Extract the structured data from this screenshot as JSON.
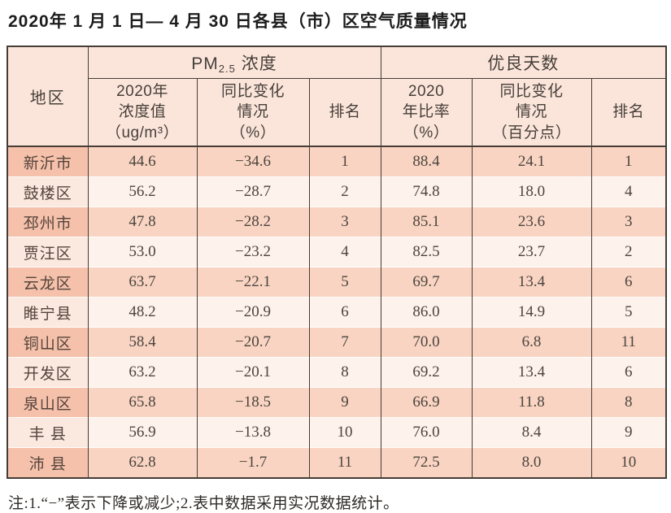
{
  "title": "2020年 1 月 1 日— 4 月 30 日各县（市）区空气质量情况",
  "table": {
    "group_region_label": "地区",
    "group_pm_prefix": "PM",
    "group_pm_sub": "2.5",
    "group_pm_suffix": " 浓度",
    "group_good_days_label": "优良天数",
    "sub_headers": {
      "pm_value": "2020年\n浓度值\n（ug/m³）",
      "pm_change": "同比变化\n情况\n（%）",
      "pm_rank": "排名",
      "ratio": "2020\n年比率\n（%）",
      "ratio_change": "同比变化\n情况\n（百分点）",
      "ratio_rank": "排名"
    },
    "rows": [
      {
        "region": "新沂市",
        "pm_value": "44.6",
        "pm_change": "−34.6",
        "pm_rank": "1",
        "ratio": "88.4",
        "ratio_change": "24.1",
        "ratio_rank": "1"
      },
      {
        "region": "鼓楼区",
        "pm_value": "56.2",
        "pm_change": "−28.7",
        "pm_rank": "2",
        "ratio": "74.8",
        "ratio_change": "18.0",
        "ratio_rank": "4"
      },
      {
        "region": "邳州市",
        "pm_value": "47.8",
        "pm_change": "−28.2",
        "pm_rank": "3",
        "ratio": "85.1",
        "ratio_change": "23.6",
        "ratio_rank": "3"
      },
      {
        "region": "贾汪区",
        "pm_value": "53.0",
        "pm_change": "−23.2",
        "pm_rank": "4",
        "ratio": "82.5",
        "ratio_change": "23.7",
        "ratio_rank": "2"
      },
      {
        "region": "云龙区",
        "pm_value": "63.7",
        "pm_change": "−22.1",
        "pm_rank": "5",
        "ratio": "69.7",
        "ratio_change": "13.4",
        "ratio_rank": "6"
      },
      {
        "region": "睢宁县",
        "pm_value": "48.2",
        "pm_change": "−20.9",
        "pm_rank": "6",
        "ratio": "86.0",
        "ratio_change": "14.9",
        "ratio_rank": "5"
      },
      {
        "region": "铜山区",
        "pm_value": "58.4",
        "pm_change": "−20.7",
        "pm_rank": "7",
        "ratio": "70.0",
        "ratio_change": "6.8",
        "ratio_rank": "11"
      },
      {
        "region": "开发区",
        "pm_value": "63.2",
        "pm_change": "−20.1",
        "pm_rank": "8",
        "ratio": "69.2",
        "ratio_change": "13.4",
        "ratio_rank": "6"
      },
      {
        "region": "泉山区",
        "pm_value": "65.8",
        "pm_change": "−18.5",
        "pm_rank": "9",
        "ratio": "66.9",
        "ratio_change": "11.8",
        "ratio_rank": "8"
      },
      {
        "region": "丰 县",
        "pm_value": "56.9",
        "pm_change": "−13.8",
        "pm_rank": "10",
        "ratio": "76.0",
        "ratio_change": "8.4",
        "ratio_rank": "9"
      },
      {
        "region": "沛 县",
        "pm_value": "62.8",
        "pm_change": "−1.7",
        "pm_rank": "11",
        "ratio": "72.5",
        "ratio_change": "8.0",
        "ratio_rank": "10"
      }
    ]
  },
  "note": "注:1.“−”表示下降或减少;2.表中数据采用实况数据统计。",
  "colors": {
    "border": "#453c36",
    "header_bg": "#fbe5da",
    "row_odd_bg": "#f9d4c2",
    "row_odd_region_bg": "#f5c1aa",
    "row_even_bg": "#fdf2ec",
    "row_even_region_bg": "#fbe9df",
    "text": "#443e39"
  }
}
